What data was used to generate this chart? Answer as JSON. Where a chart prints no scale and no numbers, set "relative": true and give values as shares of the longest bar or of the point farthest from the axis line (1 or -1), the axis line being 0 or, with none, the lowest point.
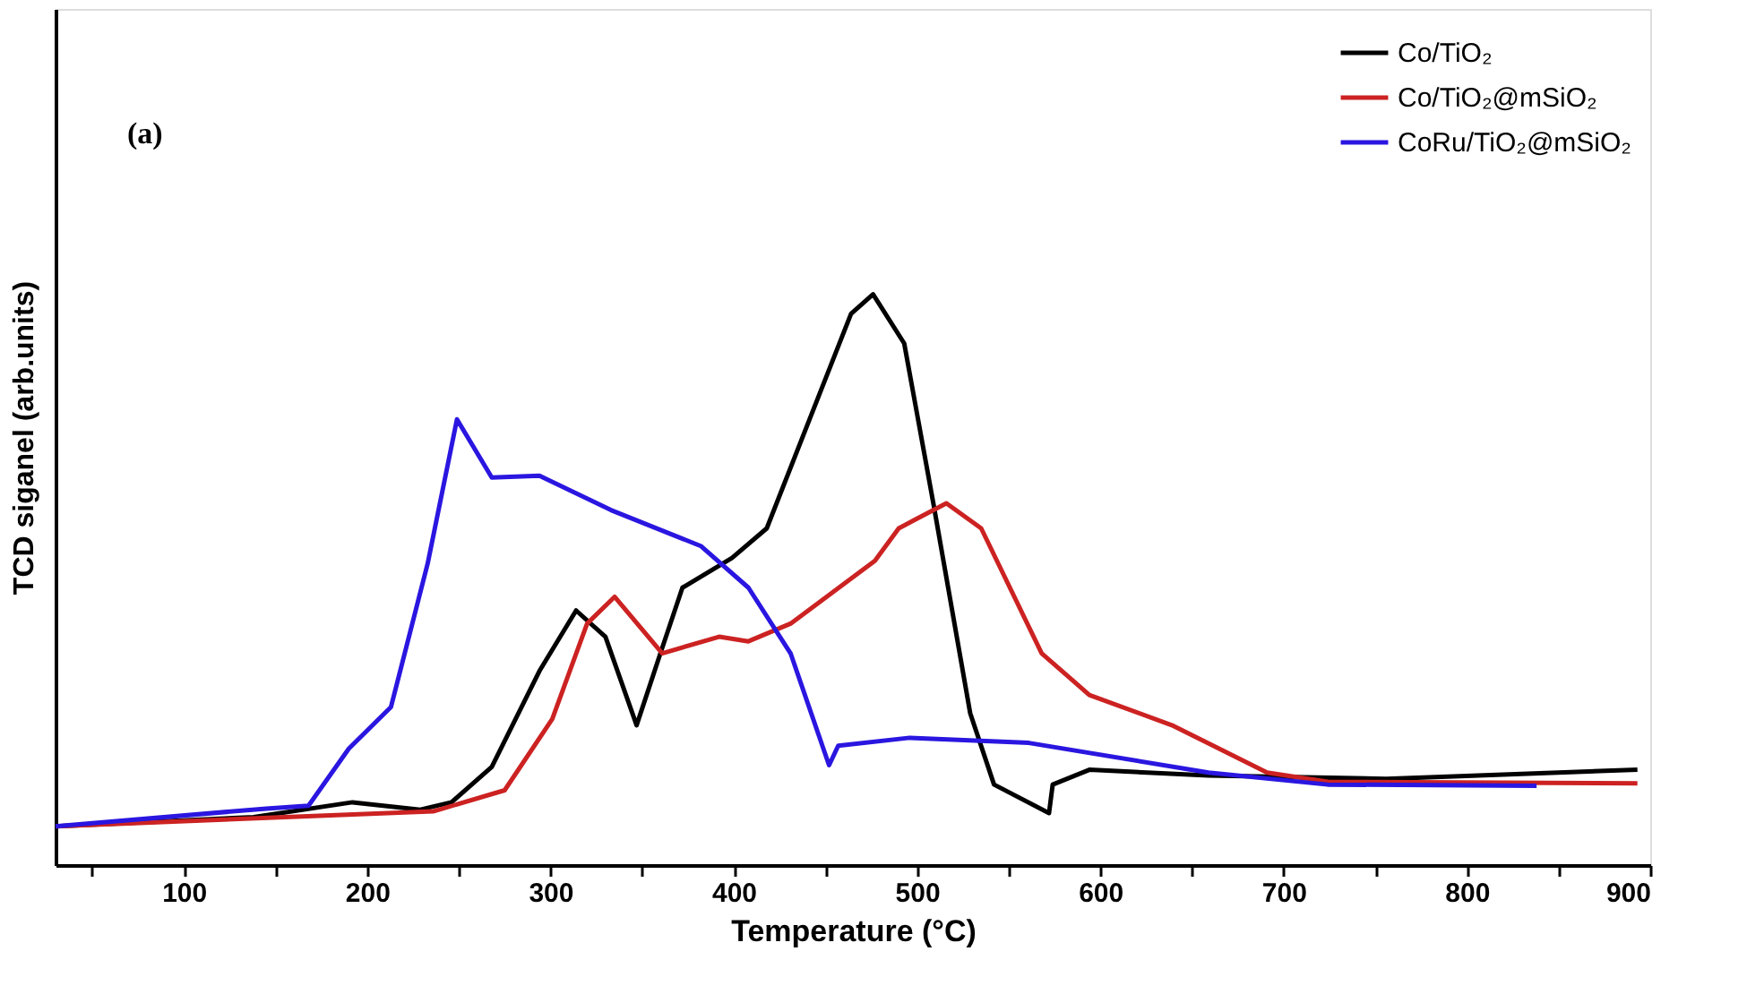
{
  "chart_data": {
    "type": "line",
    "relative": true,
    "xlabel": "Temperature (°C)",
    "ylabel": "TCD siganel (arb.units)",
    "annotations": [
      "(a)"
    ],
    "xlim": [
      30,
      900
    ],
    "xticks": [
      {
        "value": 50,
        "label": null
      },
      100,
      {
        "value": 150,
        "label": null
      },
      200,
      {
        "value": 250,
        "label": null
      },
      300,
      {
        "value": 350,
        "label": null
      },
      400,
      {
        "value": 450,
        "label": null
      },
      500,
      {
        "value": 550,
        "label": null
      },
      600,
      {
        "value": 650,
        "label": null
      },
      700,
      {
        "value": 750,
        "label": null
      },
      800,
      {
        "value": 850,
        "label": null
      },
      900
    ],
    "grid": false,
    "legend": "top right",
    "marker": "none",
    "line_style": "solid",
    "series": [
      {
        "name": "Co/TiO₂",
        "color": "#000000",
        "x": [
          30,
          138,
          192,
          229,
          246,
          268,
          294,
          314,
          330,
          347,
          360,
          372,
          399,
          418,
          441,
          464,
          476,
          493,
          509,
          529,
          542,
          572,
          574,
          594,
          659,
          756,
          893
        ],
        "values": [
          0.068,
          0.084,
          0.11,
          0.097,
          0.11,
          0.172,
          0.34,
          0.446,
          0.4,
          0.245,
          0.371,
          0.486,
          0.538,
          0.59,
          0.778,
          0.966,
          1.0,
          0.914,
          0.632,
          0.266,
          0.141,
          0.091,
          0.141,
          0.167,
          0.157,
          0.151,
          0.167
        ]
      },
      {
        "name": "Co/TiO₂@mSiO₂",
        "color": "#cc2222",
        "x": [
          30,
          236,
          275,
          301,
          320,
          335,
          350,
          361,
          392,
          408,
          431,
          477,
          490,
          516,
          535,
          568,
          594,
          639,
          691,
          724,
          893
        ],
        "values": [
          0.068,
          0.094,
          0.131,
          0.256,
          0.423,
          0.47,
          0.413,
          0.371,
          0.4,
          0.392,
          0.423,
          0.533,
          0.59,
          0.634,
          0.59,
          0.371,
          0.298,
          0.245,
          0.162,
          0.146,
          0.143
        ]
      },
      {
        "name": "CoRu/TiO₂@mSiO₂",
        "color": "#2a16e0",
        "x": [
          30,
          145,
          168,
          190,
          213,
          233,
          249,
          268,
          294,
          333,
          382,
          408,
          431,
          452,
          457,
          496,
          561,
          659,
          724,
          838
        ],
        "values": [
          0.068,
          0.099,
          0.104,
          0.204,
          0.277,
          0.528,
          0.781,
          0.679,
          0.682,
          0.622,
          0.559,
          0.486,
          0.371,
          0.175,
          0.209,
          0.223,
          0.214,
          0.162,
          0.141,
          0.139
        ]
      }
    ]
  }
}
